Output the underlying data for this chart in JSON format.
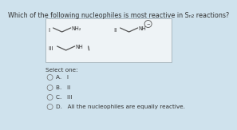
{
  "title": "Which of the following nucleophiles is most reactive in Sₙ₂ reactions?",
  "background_color": "#cfe2ed",
  "box_facecolor": "#eef3f6",
  "box_edgecolor": "#aab8c0",
  "options_label": "Select one:",
  "options": [
    "A.   I",
    "B.   II",
    "C.   III",
    "D.   All the nucleophiles are equally reactive."
  ],
  "title_fontsize": 5.8,
  "label_fontsize": 5.2,
  "chem_fontsize": 4.8,
  "options_fontsize": 5.2,
  "line_color": "#555555",
  "text_color": "#333333"
}
